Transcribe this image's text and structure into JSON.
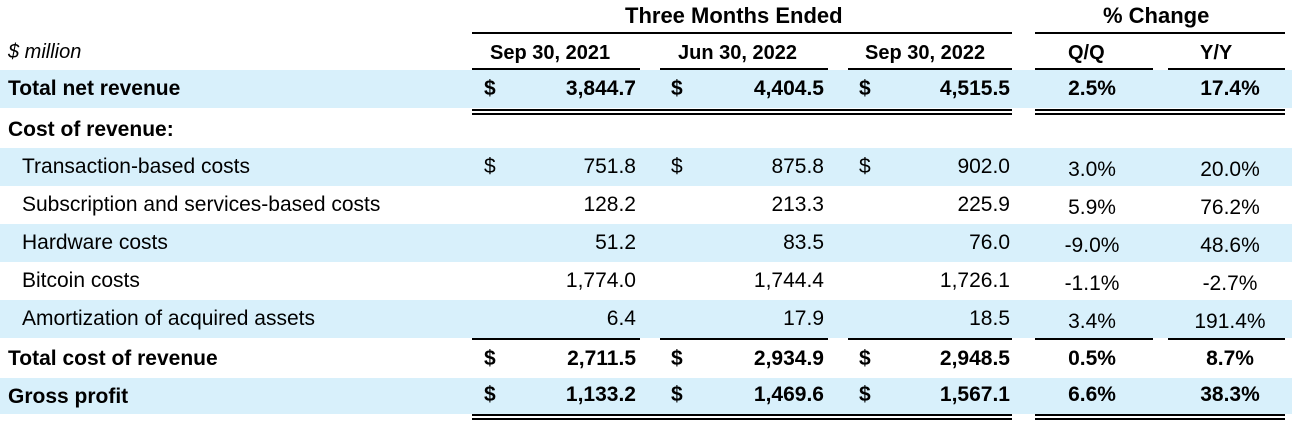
{
  "table": {
    "units_label": "$ million",
    "group_headers": {
      "three_months": "Three Months Ended",
      "pct_change": "% Change"
    },
    "columns": [
      "Sep 30, 2021",
      "Jun 30, 2022",
      "Sep 30, 2022",
      "Q/Q",
      "Y/Y"
    ],
    "currency_symbol": "$",
    "shade_color": "#d8f0fb",
    "rows": [
      {
        "label": "Total net revenue",
        "v1": "3,844.7",
        "v2": "4,404.5",
        "v3": "4,515.5",
        "qq": "2.5%",
        "yy": "17.4%"
      },
      {
        "label": "Cost of revenue:"
      },
      {
        "label": "Transaction-based costs",
        "v1": "751.8",
        "v2": "875.8",
        "v3": "902.0",
        "qq": "3.0%",
        "yy": "20.0%"
      },
      {
        "label": "Subscription and services-based costs",
        "v1": "128.2",
        "v2": "213.3",
        "v3": "225.9",
        "qq": "5.9%",
        "yy": "76.2%"
      },
      {
        "label": "Hardware costs",
        "v1": "51.2",
        "v2": "83.5",
        "v3": "76.0",
        "qq": "-9.0%",
        "yy": "48.6%"
      },
      {
        "label": "Bitcoin costs",
        "v1": "1,774.0",
        "v2": "1,744.4",
        "v3": "1,726.1",
        "qq": "-1.1%",
        "yy": "-2.7%"
      },
      {
        "label": "Amortization of acquired assets",
        "v1": "6.4",
        "v2": "17.9",
        "v3": "18.5",
        "qq": "3.4%",
        "yy": "191.4%"
      },
      {
        "label": "Total cost of revenue",
        "v1": "2,711.5",
        "v2": "2,934.9",
        "v3": "2,948.5",
        "qq": "0.5%",
        "yy": "8.7%"
      },
      {
        "label": "Gross profit",
        "v1": "1,133.2",
        "v2": "1,469.6",
        "v3": "1,567.1",
        "qq": "6.6%",
        "yy": "38.3%"
      }
    ]
  }
}
